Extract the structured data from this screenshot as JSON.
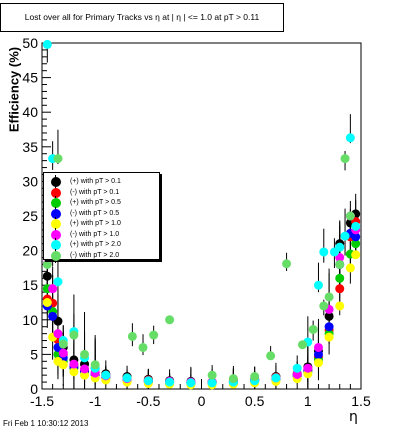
{
  "title": "Lost over all for Primary Tracks vs  η at |  η | <= 1.0 at pT > 0.11",
  "footer": "Fri Feb  1 10:30:12 2013",
  "chart_data": {
    "type": "scatter",
    "title": "Lost over all for Primary Tracks vs  η at |  η | <= 1.0 at pT > 0.11",
    "xlabel": "η",
    "ylabel": "Efficiency (%)",
    "xlim": [
      -1.5,
      1.5
    ],
    "ylim": [
      0,
      50
    ],
    "x_ticks": [
      "-1.5",
      "-1",
      "-0.5",
      "0",
      "0.5",
      "1",
      "1.5"
    ],
    "y_ticks": [
      "0",
      "5",
      "10",
      "15",
      "20",
      "25",
      "30",
      "35",
      "40",
      "45",
      "50"
    ],
    "grid": false,
    "legend_position": "left-middle",
    "series": [
      {
        "name": "(+) with pT > 0.1",
        "color": "#000000",
        "points": [
          [
            -1.45,
            16.3
          ],
          [
            -1.4,
            19.1
          ],
          [
            -1.35,
            9.8
          ],
          [
            -1.3,
            6
          ],
          [
            -1.2,
            4.2
          ],
          [
            -1.1,
            3.6
          ],
          [
            -1,
            3
          ],
          [
            -0.9,
            2.2
          ],
          [
            -0.7,
            1.8
          ],
          [
            -0.5,
            1.4
          ],
          [
            -0.3,
            1.2
          ],
          [
            -0.1,
            1.1
          ],
          [
            0.1,
            1
          ],
          [
            0.3,
            1.2
          ],
          [
            0.5,
            1.4
          ],
          [
            0.7,
            1.8
          ],
          [
            0.9,
            2.2
          ],
          [
            1,
            3.2
          ],
          [
            1.1,
            5.5
          ],
          [
            1.2,
            10.5
          ],
          [
            1.3,
            21
          ],
          [
            1.4,
            24
          ],
          [
            1.45,
            25.3
          ]
        ]
      },
      {
        "name": "(-) with pT > 0.1",
        "color": "#ff0000",
        "points": [
          [
            -1.45,
            13
          ],
          [
            -1.4,
            12.4
          ],
          [
            -1.35,
            7.1
          ],
          [
            -1.3,
            5
          ],
          [
            -1.2,
            3.5
          ],
          [
            -1.1,
            2.8
          ],
          [
            -1,
            2.4
          ],
          [
            -0.9,
            2
          ],
          [
            -0.7,
            1.6
          ],
          [
            -0.5,
            1.3
          ],
          [
            -0.3,
            1.1
          ],
          [
            -0.1,
            1
          ],
          [
            0.1,
            1
          ],
          [
            0.3,
            1.1
          ],
          [
            0.5,
            1.3
          ],
          [
            0.7,
            1.7
          ],
          [
            0.9,
            2.1
          ],
          [
            1,
            2.8
          ],
          [
            1.1,
            4.6
          ],
          [
            1.2,
            8.5
          ],
          [
            1.3,
            14.5
          ],
          [
            1.4,
            22
          ],
          [
            1.45,
            24.2
          ]
        ]
      },
      {
        "name": "(+) with pT > 0.5",
        "color": "#00cc00",
        "points": [
          [
            -1.45,
            14.5
          ],
          [
            -1.4,
            11.2
          ],
          [
            -1.35,
            5
          ],
          [
            -1.3,
            4
          ],
          [
            -1.2,
            3
          ],
          [
            -1.1,
            2.5
          ],
          [
            -1,
            2
          ],
          [
            -0.9,
            1.6
          ],
          [
            -0.7,
            1.3
          ],
          [
            -0.5,
            1
          ],
          [
            -0.3,
            0.9
          ],
          [
            -0.1,
            0.8
          ],
          [
            0.1,
            0.8
          ],
          [
            0.3,
            0.9
          ],
          [
            0.5,
            1.1
          ],
          [
            0.7,
            1.4
          ],
          [
            0.9,
            1.8
          ],
          [
            1,
            2.5
          ],
          [
            1.1,
            4.2
          ],
          [
            1.2,
            8
          ],
          [
            1.3,
            16
          ],
          [
            1.4,
            19.5
          ],
          [
            1.45,
            21
          ]
        ]
      },
      {
        "name": "(-) with pT > 0.5",
        "color": "#0000ff",
        "points": [
          [
            -1.45,
            12
          ],
          [
            -1.4,
            10.5
          ],
          [
            -1.35,
            6
          ],
          [
            -1.3,
            4.5
          ],
          [
            -1.2,
            3.2
          ],
          [
            -1.1,
            2.6
          ],
          [
            -1,
            2.1
          ],
          [
            -0.9,
            1.7
          ],
          [
            -0.7,
            1.4
          ],
          [
            -0.5,
            1.1
          ],
          [
            -0.3,
            1
          ],
          [
            -0.1,
            0.9
          ],
          [
            0.1,
            0.9
          ],
          [
            0.3,
            1
          ],
          [
            0.5,
            1.2
          ],
          [
            0.7,
            1.5
          ],
          [
            0.9,
            2
          ],
          [
            1,
            2.7
          ],
          [
            1.1,
            5
          ],
          [
            1.2,
            9
          ],
          [
            1.3,
            18
          ],
          [
            1.4,
            22.5
          ],
          [
            1.45,
            22
          ]
        ]
      },
      {
        "name": "(+) with pT > 1.0",
        "color": "#ffff00",
        "points": [
          [
            -1.45,
            12.5
          ],
          [
            -1.4,
            7.5
          ],
          [
            -1.35,
            4
          ],
          [
            -1.3,
            3.5
          ],
          [
            -1.2,
            2.5
          ],
          [
            -1.1,
            2
          ],
          [
            -1,
            1.6
          ],
          [
            -0.9,
            1.3
          ],
          [
            -0.7,
            1
          ],
          [
            -0.5,
            0.8
          ],
          [
            -0.3,
            0.7
          ],
          [
            -0.1,
            0.6
          ],
          [
            0.1,
            0.6
          ],
          [
            0.3,
            0.7
          ],
          [
            0.5,
            0.9
          ],
          [
            0.7,
            1.1
          ],
          [
            0.9,
            1.5
          ],
          [
            1,
            2.2
          ],
          [
            1.1,
            3.8
          ],
          [
            1.2,
            7.5
          ],
          [
            1.3,
            12
          ],
          [
            1.4,
            17.5
          ],
          [
            1.45,
            19.4
          ]
        ]
      },
      {
        "name": "(-) with pT > 1.0",
        "color": "#ff00ff",
        "points": [
          [
            -1.45,
            18.1
          ],
          [
            -1.4,
            14.5
          ],
          [
            -1.35,
            8
          ],
          [
            -1.3,
            5.2
          ],
          [
            -1.2,
            3.6
          ],
          [
            -1.1,
            2.9
          ],
          [
            -1,
            2.3
          ],
          [
            -0.9,
            1.9
          ],
          [
            -0.7,
            1.5
          ],
          [
            -0.5,
            1.2
          ],
          [
            -0.3,
            1.1
          ],
          [
            -0.1,
            1
          ],
          [
            0.1,
            1
          ],
          [
            0.3,
            1.1
          ],
          [
            0.5,
            1.3
          ],
          [
            0.7,
            1.6
          ],
          [
            0.9,
            2.1
          ],
          [
            1,
            3
          ],
          [
            1.1,
            6
          ],
          [
            1.2,
            11.5
          ],
          [
            1.3,
            19
          ],
          [
            1.4,
            25
          ],
          [
            1.45,
            23
          ]
        ]
      },
      {
        "name": "(+) with pT > 2.0",
        "color": "#00ffff",
        "points": [
          [
            -1.45,
            49.8
          ],
          [
            -1.4,
            33.3
          ],
          [
            -1.35,
            15.5
          ],
          [
            -1.3,
            7
          ],
          [
            -1.2,
            8.3
          ],
          [
            -1.1,
            4.5
          ],
          [
            -1,
            3
          ],
          [
            -0.9,
            2
          ],
          [
            -0.7,
            1.6
          ],
          [
            -0.5,
            1.2
          ],
          [
            -0.3,
            1
          ],
          [
            -0.1,
            0.9
          ],
          [
            0.1,
            0.9
          ],
          [
            0.3,
            1
          ],
          [
            0.5,
            1.2
          ],
          [
            0.7,
            1.6
          ],
          [
            0.9,
            3
          ],
          [
            1,
            6.8
          ],
          [
            1.1,
            15
          ],
          [
            1.15,
            19.8
          ],
          [
            1.25,
            19.8
          ],
          [
            1.3,
            20.5
          ],
          [
            1.35,
            22.1
          ],
          [
            1.4,
            36.3
          ],
          [
            1.45,
            23.5
          ]
        ]
      },
      {
        "name": "(-) with pT > 2.0",
        "color": "#66dd66",
        "points": [
          [
            -1.45,
            18
          ],
          [
            -1.35,
            33.3
          ],
          [
            -1.3,
            6.5
          ],
          [
            -1.2,
            7.8
          ],
          [
            -1.1,
            5
          ],
          [
            -1,
            3.5
          ],
          [
            -0.65,
            7.6
          ],
          [
            -0.55,
            6
          ],
          [
            -0.45,
            7.8
          ],
          [
            -0.3,
            10
          ],
          [
            0.1,
            2
          ],
          [
            0.3,
            1.5
          ],
          [
            0.5,
            1.8
          ],
          [
            0.65,
            4.8
          ],
          [
            0.8,
            18.1
          ],
          [
            0.95,
            6.4
          ],
          [
            1.05,
            8.6
          ],
          [
            1.15,
            12
          ],
          [
            1.2,
            13.3
          ],
          [
            1.3,
            18
          ],
          [
            1.35,
            33.3
          ],
          [
            1.4,
            25
          ]
        ]
      }
    ]
  }
}
